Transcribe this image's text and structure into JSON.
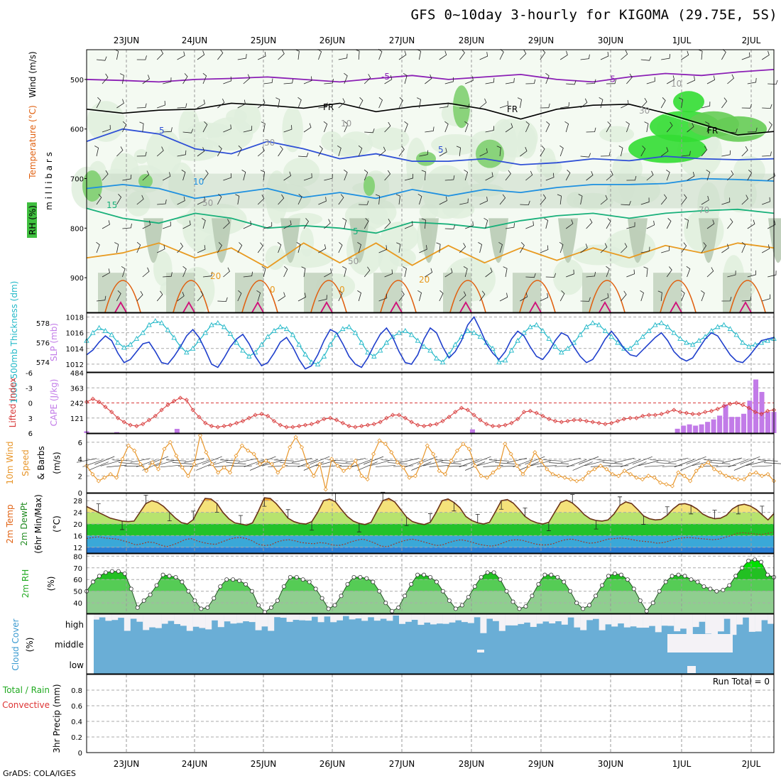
{
  "title": "GFS 0~10day 3-hourly for KIGOMA (29.75E, 5S)",
  "credit": "GrADS: COLA/IGES",
  "colors": {
    "purple": "#8b1fb5",
    "blue": "#2e4fd6",
    "lightblue": "#1e90e0",
    "teal": "#18b07a",
    "orange": "#e89a20",
    "darkorange": "#e06010",
    "magenta": "#d0107a",
    "cyan": "#22b8c8",
    "slpblue": "#1f3fcc",
    "li": "#d83a3a",
    "cape": "#c27be8",
    "wind10": "#e8962a",
    "rh_dark": "#00cc00",
    "rh_mid": "#6fd66f",
    "rh_light": "#9fd89f",
    "cloud": "#6aaed6"
  },
  "chart_data": [
    {
      "panel": "upper-air",
      "type": "contour",
      "x_dates": [
        "23JUN",
        "24JUN",
        "25JUN",
        "26JUN",
        "27JUN",
        "28JUN",
        "29JUN",
        "30JUN",
        "1JUL",
        "2JUL"
      ],
      "ylabel": "m i l l i b a r s",
      "side_labels": [
        "Wind (m/s)",
        "Temperature (°C)",
        "RH (%)"
      ],
      "y_ticks": [
        500,
        600,
        700,
        800,
        900
      ],
      "ylim": [
        440,
        970
      ],
      "contour_labels": [
        "-5",
        "-5",
        "FR",
        "FR",
        "FR",
        "5",
        "5",
        "10",
        "15",
        "5",
        "20",
        "20",
        "0",
        "0",
        "10",
        "30",
        "30",
        "50",
        "50",
        "70",
        "10"
      ],
      "isotherms": [
        {
          "name": "-5",
          "color": "purple",
          "p": [
            500,
            502,
            505,
            500,
            498,
            495,
            500,
            505,
            498,
            492,
            500,
            495,
            490,
            500,
            505,
            495,
            488,
            492,
            485,
            480
          ]
        },
        {
          "name": "FR",
          "color": "black",
          "p": [
            560,
            568,
            562,
            560,
            548,
            552,
            558,
            548,
            565,
            555,
            548,
            560,
            580,
            560,
            552,
            550,
            568,
            590,
            612,
            605
          ]
        },
        {
          "name": "5",
          "color": "blue",
          "p": [
            625,
            600,
            610,
            640,
            650,
            625,
            640,
            660,
            650,
            665,
            665,
            660,
            672,
            668,
            660,
            664,
            655,
            660,
            662,
            660
          ]
        },
        {
          "name": "10",
          "color": "lightblue",
          "p": [
            720,
            712,
            720,
            740,
            730,
            720,
            738,
            728,
            740,
            722,
            735,
            722,
            728,
            718,
            712,
            712,
            710,
            700,
            702,
            705
          ]
        },
        {
          "name": "15",
          "color": "teal",
          "p": [
            760,
            780,
            790,
            770,
            780,
            800,
            795,
            800,
            810,
            788,
            792,
            800,
            785,
            775,
            770,
            780,
            770,
            765,
            762,
            770
          ]
        },
        {
          "name": "20",
          "color": "orange",
          "p": [
            860,
            850,
            830,
            860,
            840,
            880,
            830,
            870,
            830,
            875,
            835,
            870,
            840,
            865,
            840,
            860,
            835,
            850,
            830,
            840
          ]
        }
      ]
    },
    {
      "panel": "thickness-slp",
      "type": "line",
      "left_label": "1000-500mb Thickness (dm)",
      "right_label": "SLP (mb)",
      "left_ticks": [
        574,
        576,
        578
      ],
      "right_ticks": [
        1012,
        1014,
        1016,
        1018
      ],
      "series": [
        {
          "name": "1000-500mb Thickness (dm)",
          "color": "cyan",
          "ylim": [
            573,
            579
          ],
          "values": [
            576.2,
            577.0,
            577.5,
            577.2,
            576.8,
            576.0,
            575.5,
            575.8,
            576.4,
            577.0,
            577.8,
            578.2,
            578.0,
            577.3,
            576.5,
            575.6,
            575.0,
            575.4,
            576.2,
            577.0,
            577.8,
            578.0,
            577.6,
            576.9,
            576.0,
            575.2,
            574.6,
            575.0,
            575.8,
            576.6,
            577.2,
            577.6,
            577.4,
            576.8,
            575.8,
            574.8,
            574.0,
            573.8,
            574.6,
            575.8,
            576.8,
            577.4,
            577.6,
            577.0,
            576.0,
            575.0,
            574.6,
            575.2,
            576.0,
            576.6,
            577.0,
            577.2,
            576.8,
            576.2,
            575.6,
            575.2,
            574.4,
            574.0,
            574.8,
            575.8,
            576.6,
            577.2,
            577.0,
            576.6,
            576.0,
            575.4,
            574.0,
            574.2,
            575.2,
            576.2,
            577.0,
            577.6,
            577.8,
            577.2,
            576.4,
            575.6,
            575.0,
            575.4,
            576.0,
            576.8,
            577.6,
            578.0,
            577.8,
            577.2,
            576.6,
            576.0,
            575.4,
            575.4,
            576.0,
            576.6,
            577.2,
            577.8,
            578.0,
            577.6,
            577.0,
            576.4,
            576.0,
            575.8,
            576.2,
            576.6,
            577.2,
            577.6,
            577.8,
            577.4,
            576.8,
            576.0,
            575.6,
            575.8,
            576.0,
            576.2,
            576.4
          ]
        },
        {
          "name": "SLP (mb)",
          "color": "slpblue",
          "ylim": [
            1011,
            1018.5
          ],
          "values": [
            1013.2,
            1013.8,
            1014.8,
            1015.6,
            1015.0,
            1013.4,
            1012.2,
            1012.6,
            1013.6,
            1014.6,
            1014.8,
            1013.6,
            1012.2,
            1012.0,
            1013.0,
            1014.2,
            1015.6,
            1016.4,
            1015.4,
            1013.8,
            1012.0,
            1011.6,
            1012.8,
            1014.2,
            1015.2,
            1015.8,
            1014.6,
            1013.0,
            1011.8,
            1012.2,
            1013.4,
            1014.8,
            1015.4,
            1014.2,
            1012.6,
            1011.4,
            1011.8,
            1013.2,
            1015.0,
            1016.4,
            1016.0,
            1014.6,
            1013.0,
            1012.0,
            1011.6,
            1012.8,
            1014.4,
            1015.8,
            1016.6,
            1015.4,
            1013.6,
            1012.2,
            1012.0,
            1013.2,
            1015.2,
            1016.6,
            1016.0,
            1014.2,
            1012.8,
            1013.6,
            1015.0,
            1017.0,
            1018.0,
            1016.4,
            1014.6,
            1013.4,
            1012.6,
            1013.6,
            1015.2,
            1016.2,
            1015.6,
            1014.2,
            1013.0,
            1012.6,
            1013.6,
            1015.0,
            1016.0,
            1015.6,
            1014.2,
            1013.0,
            1012.2,
            1012.6,
            1013.8,
            1015.2,
            1016.2,
            1015.2,
            1014.0,
            1013.2,
            1013.0,
            1013.8,
            1014.6,
            1015.4,
            1016.0,
            1015.0,
            1013.6,
            1012.8,
            1012.4,
            1012.8,
            1014.0,
            1015.2,
            1016.0,
            1015.6,
            1014.4,
            1013.2,
            1012.4,
            1012.2,
            1013.0,
            1014.0,
            1015.0,
            1015.2,
            1015.4
          ]
        }
      ]
    },
    {
      "panel": "lifted-index-cape",
      "type": "bar+line",
      "left_label": "Lifted Index",
      "right_label": "CAPE (J/kg)",
      "left_ticks": [
        -6,
        -3,
        0,
        3,
        6
      ],
      "right_ticks": [
        121,
        242,
        363,
        484
      ],
      "li_ylim": [
        6,
        -6
      ],
      "cape_ylim": [
        0,
        484
      ],
      "lifted_index": [
        -0.2,
        -0.8,
        -0.2,
        0.8,
        1.8,
        3.0,
        3.8,
        4.4,
        4.6,
        4.2,
        3.4,
        2.6,
        1.4,
        0.4,
        -0.4,
        -1.0,
        -0.6,
        1.4,
        2.8,
        4.0,
        4.6,
        4.8,
        4.6,
        4.4,
        4.0,
        3.6,
        3.0,
        2.4,
        2.2,
        2.6,
        3.6,
        4.4,
        4.8,
        4.8,
        4.6,
        4.4,
        4.2,
        3.8,
        3.2,
        3.0,
        3.4,
        4.0,
        4.6,
        4.8,
        4.6,
        4.4,
        4.2,
        3.8,
        3.0,
        2.4,
        2.4,
        3.0,
        3.8,
        4.4,
        4.6,
        4.4,
        4.2,
        3.6,
        2.8,
        1.8,
        1.0,
        1.4,
        2.4,
        3.4,
        4.2,
        4.6,
        4.6,
        4.4,
        4.0,
        3.2,
        1.8,
        1.6,
        2.0,
        2.6,
        3.2,
        3.6,
        3.8,
        3.6,
        3.4,
        3.4,
        3.6,
        3.8,
        4.0,
        4.2,
        4.0,
        3.6,
        3.2,
        3.0,
        3.0,
        2.6,
        2.4,
        2.4,
        2.2,
        1.8,
        1.4,
        1.8,
        2.0,
        2.2,
        2.2,
        1.8,
        1.6,
        1.2,
        0.6,
        0.2,
        0.0,
        0.4,
        1.0,
        1.8,
        2.2,
        1.6,
        1.4
      ],
      "cape": [
        15,
        0,
        0,
        0,
        0,
        8,
        0,
        0,
        0,
        0,
        0,
        0,
        0,
        0,
        0,
        34,
        0,
        0,
        0,
        0,
        0,
        0,
        0,
        0,
        0,
        0,
        0,
        0,
        0,
        0,
        0,
        0,
        0,
        0,
        0,
        0,
        0,
        0,
        0,
        0,
        0,
        0,
        0,
        0,
        0,
        0,
        0,
        0,
        0,
        0,
        0,
        0,
        0,
        0,
        0,
        0,
        0,
        0,
        0,
        0,
        0,
        0,
        0,
        0,
        30,
        0,
        0,
        0,
        0,
        0,
        0,
        0,
        0,
        0,
        0,
        0,
        0,
        0,
        0,
        0,
        0,
        0,
        0,
        0,
        0,
        0,
        0,
        0,
        0,
        0,
        0,
        0,
        0,
        0,
        0,
        0,
        0,
        0,
        35,
        60,
        70,
        60,
        70,
        90,
        110,
        140,
        230,
        130,
        130,
        155,
        260,
        430,
        330,
        170,
        170
      ]
    },
    {
      "panel": "10m-wind",
      "type": "line",
      "left_label": "10m Wind",
      "left_label2": "Speed",
      "left_label3": "& Barbs",
      "unit": "(m/s)",
      "y_ticks": [
        0,
        2,
        4,
        6
      ],
      "ylim": [
        0,
        7
      ],
      "speed": [
        3.2,
        2.2,
        1.4,
        1.8,
        2.2,
        1.8,
        4.0,
        5.6,
        5.0,
        3.4,
        2.6,
        3.6,
        2.8,
        5.2,
        6.0,
        4.4,
        3.0,
        2.0,
        3.4,
        6.8,
        4.8,
        3.4,
        2.4,
        3.0,
        2.4,
        4.4,
        5.6,
        5.0,
        4.6,
        3.4,
        3.8,
        3.4,
        2.4,
        3.2,
        5.4,
        6.6,
        5.4,
        3.2,
        2.0,
        3.4,
        0.4,
        4.0,
        3.2,
        2.6,
        3.0,
        3.8,
        2.0,
        1.6,
        4.6,
        6.2,
        5.8,
        4.8,
        3.6,
        3.0,
        1.8,
        2.0,
        3.6,
        5.6,
        4.6,
        2.6,
        2.2,
        3.8,
        5.0,
        5.8,
        5.2,
        3.2,
        2.0,
        1.8,
        2.4,
        3.0,
        5.8,
        4.6,
        3.2,
        2.2,
        3.2,
        4.8,
        3.8,
        2.8,
        2.2,
        2.0,
        1.8,
        1.6,
        1.4,
        1.6,
        2.4,
        2.8,
        3.2,
        2.8,
        2.2,
        2.0,
        2.6,
        2.2,
        1.8,
        1.6,
        2.0,
        1.8,
        1.2,
        1.0,
        0.8,
        2.4,
        2.0,
        1.4,
        2.6,
        3.2,
        3.6,
        2.8,
        2.4,
        2.0,
        1.8,
        1.6,
        1.6,
        2.2,
        2.4,
        2.0,
        2.2,
        1.4
      ]
    },
    {
      "panel": "2m-temp",
      "type": "area",
      "left_label": "2m Temp",
      "left_label2": "2m DewPt",
      "left_label3": "(6hr Min/Max)",
      "unit": "(°C)",
      "y_ticks": [
        12,
        16,
        20,
        24,
        28
      ],
      "ylim": [
        10,
        30.5
      ],
      "temp": [
        26,
        25,
        24,
        23,
        22,
        21.5,
        21,
        20.8,
        21,
        24,
        27,
        28,
        27.4,
        26,
        24,
        22,
        20.5,
        20,
        21.5,
        25.5,
        28.8,
        28.6,
        27,
        24,
        21.8,
        20.4,
        20,
        19.6,
        20.4,
        24.4,
        29,
        28.8,
        27,
        24.6,
        22,
        20.8,
        20.2,
        20,
        20.8,
        24,
        28,
        28.6,
        27.6,
        25,
        22.6,
        21,
        20.2,
        19.8,
        20.6,
        24.4,
        28,
        28.8,
        27.6,
        25,
        22.4,
        20.8,
        20.2,
        19.8,
        20.6,
        24,
        28,
        28.6,
        27.4,
        25.6,
        22.6,
        21.2,
        20.4,
        20,
        20.6,
        24.2,
        28,
        28.4,
        27.2,
        25,
        22.6,
        21.2,
        20.4,
        20,
        20.6,
        24,
        27.4,
        28.2,
        27.2,
        25.4,
        23.2,
        21.8,
        21.2,
        21,
        21.4,
        23.4,
        26.4,
        27.6,
        27,
        25,
        22.8,
        21.8,
        21.4,
        21.6,
        23,
        25.2,
        26.8,
        27,
        26.4,
        25.2,
        23.4,
        22.4,
        21.8,
        22,
        23,
        25.2,
        26.4,
        26.8,
        26.2,
        25,
        23.2,
        21.4,
        23.6
      ],
      "dewpoint": [
        15,
        15.4,
        15.6,
        15.2,
        15,
        14.8,
        14.2,
        13.6,
        12.8,
        13.2,
        13.8,
        13.6,
        12.8,
        12.2,
        12.8,
        13.6,
        14.6,
        15,
        14.2,
        13.6,
        13.2,
        13,
        13.8,
        14.6,
        15.2,
        15.4,
        15,
        14.2,
        13,
        12.6,
        12.8,
        13.8,
        14.4,
        14.6,
        14.2,
        13.6,
        13.4,
        13.2,
        13.6,
        13.4,
        12.8,
        12.6,
        13,
        13.8,
        14.4,
        14.8,
        14.2,
        13.4,
        12.4,
        12.2,
        13,
        13.8,
        14.4,
        14.8,
        14.4,
        13.8,
        13.2,
        12.6,
        12.8,
        13.6,
        14.2,
        14.6,
        14.2,
        13.6,
        13,
        12.6,
        12.4,
        12.8,
        13.6,
        14.4,
        14.6,
        14.4,
        13.8,
        13.2,
        12.8,
        12.8,
        13.2,
        14,
        14.6,
        14.8,
        14.4,
        13.8,
        13.4,
        13.6,
        14.2,
        14.8,
        15,
        15.2,
        15,
        14.6,
        14.2,
        14,
        13.8,
        13.4,
        13.6,
        14.2,
        14.8,
        15.2,
        15.4,
        15.2,
        15,
        14.8,
        14.6,
        14.8,
        15.4,
        16,
        16.8,
        17,
        16.8,
        16.6,
        16.4,
        16.8,
        17.2
      ]
    },
    {
      "panel": "2m-rh",
      "type": "area",
      "left_label": "2m RH",
      "unit": "(%)",
      "y_ticks": [
        40,
        50,
        60,
        70,
        80
      ],
      "ylim": [
        31,
        82
      ],
      "rh": [
        50,
        58,
        63,
        66,
        67,
        67,
        65,
        52,
        36,
        42,
        47,
        55,
        64,
        63,
        62,
        58,
        50,
        42,
        35,
        36,
        44,
        54,
        60,
        60,
        59,
        56,
        50,
        38,
        32,
        36,
        42,
        54,
        62,
        62,
        60,
        58,
        52,
        44,
        35,
        38,
        46,
        56,
        62,
        62,
        61,
        58,
        50,
        40,
        33,
        36,
        46,
        56,
        64,
        64,
        62,
        58,
        50,
        42,
        35,
        38,
        45,
        54,
        62,
        66,
        66,
        60,
        50,
        41,
        35,
        37,
        46,
        56,
        64,
        64,
        62,
        58,
        50,
        40,
        35,
        38,
        46,
        55,
        63,
        65,
        64,
        60,
        52,
        42,
        33,
        40,
        50,
        58,
        63,
        64,
        63,
        60,
        58,
        54,
        52,
        50,
        51,
        55,
        63,
        70,
        76,
        77,
        75,
        64,
        62
      ]
    },
    {
      "panel": "cloud-cover",
      "type": "heatmap",
      "left_label": "Cloud Cover",
      "unit": "(%)",
      "levels": [
        "high",
        "middle",
        "low"
      ]
    },
    {
      "panel": "precip",
      "type": "bar",
      "left_label": "3hr Precip (mm)",
      "side_label1": "Total / Rain",
      "side_label2": "Convective",
      "y_ticks": [
        0,
        0.2,
        0.4,
        0.6,
        0.8
      ],
      "ylim": [
        0,
        1.0
      ],
      "run_total_label": "Run Total = 0",
      "values": []
    }
  ]
}
